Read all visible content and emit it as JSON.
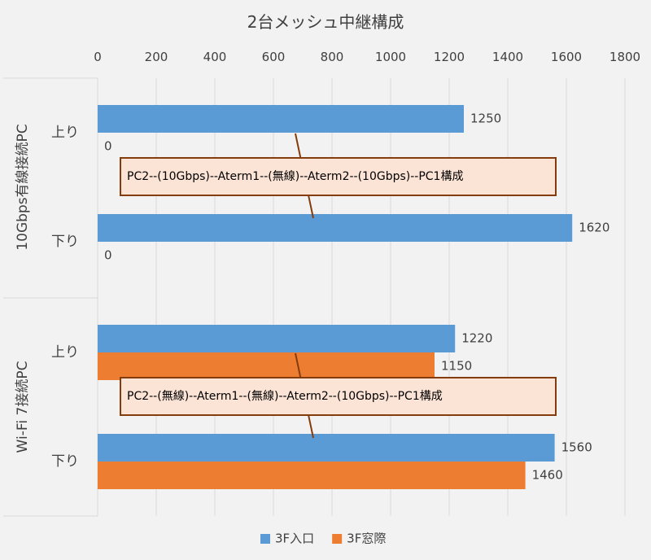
{
  "chart_data": {
    "type": "bar",
    "orientation": "horizontal",
    "title": "2台メッシュ中継構成",
    "xlim": [
      0,
      1800
    ],
    "x_ticks": [
      0,
      200,
      400,
      600,
      800,
      1000,
      1200,
      1400,
      1600,
      1800
    ],
    "grid": true,
    "legend_position": "bottom",
    "groups": [
      {
        "label": "10Gbps有線接続PC",
        "categories": [
          "上り",
          "下り"
        ],
        "annotation": "PC2--(10Gbps)--Aterm1--(無線)--Aterm2--(10Gbps)--PC1構成"
      },
      {
        "label": "Wi-Fi 7接続PC",
        "categories": [
          "上り",
          "下り"
        ],
        "annotation": "PC2--(無線)--Aterm1--(無線)--Aterm2--(10Gbps)--PC1構成"
      }
    ],
    "series": [
      {
        "name": "3F入口",
        "color": "#5b9bd5",
        "values": [
          [
            1250,
            1620
          ],
          [
            1220,
            1560
          ]
        ]
      },
      {
        "name": "3F窓際",
        "color": "#ed7d31",
        "values": [
          [
            0,
            0
          ],
          [
            1150,
            1460
          ]
        ]
      }
    ],
    "colors": {
      "background": "#f2f2f2",
      "grid": "#d9d9d9",
      "text": "#404040",
      "annotation_fill": "#fbe3d6",
      "annotation_border": "#843c0c",
      "annotation_line": "#843c0c"
    }
  }
}
